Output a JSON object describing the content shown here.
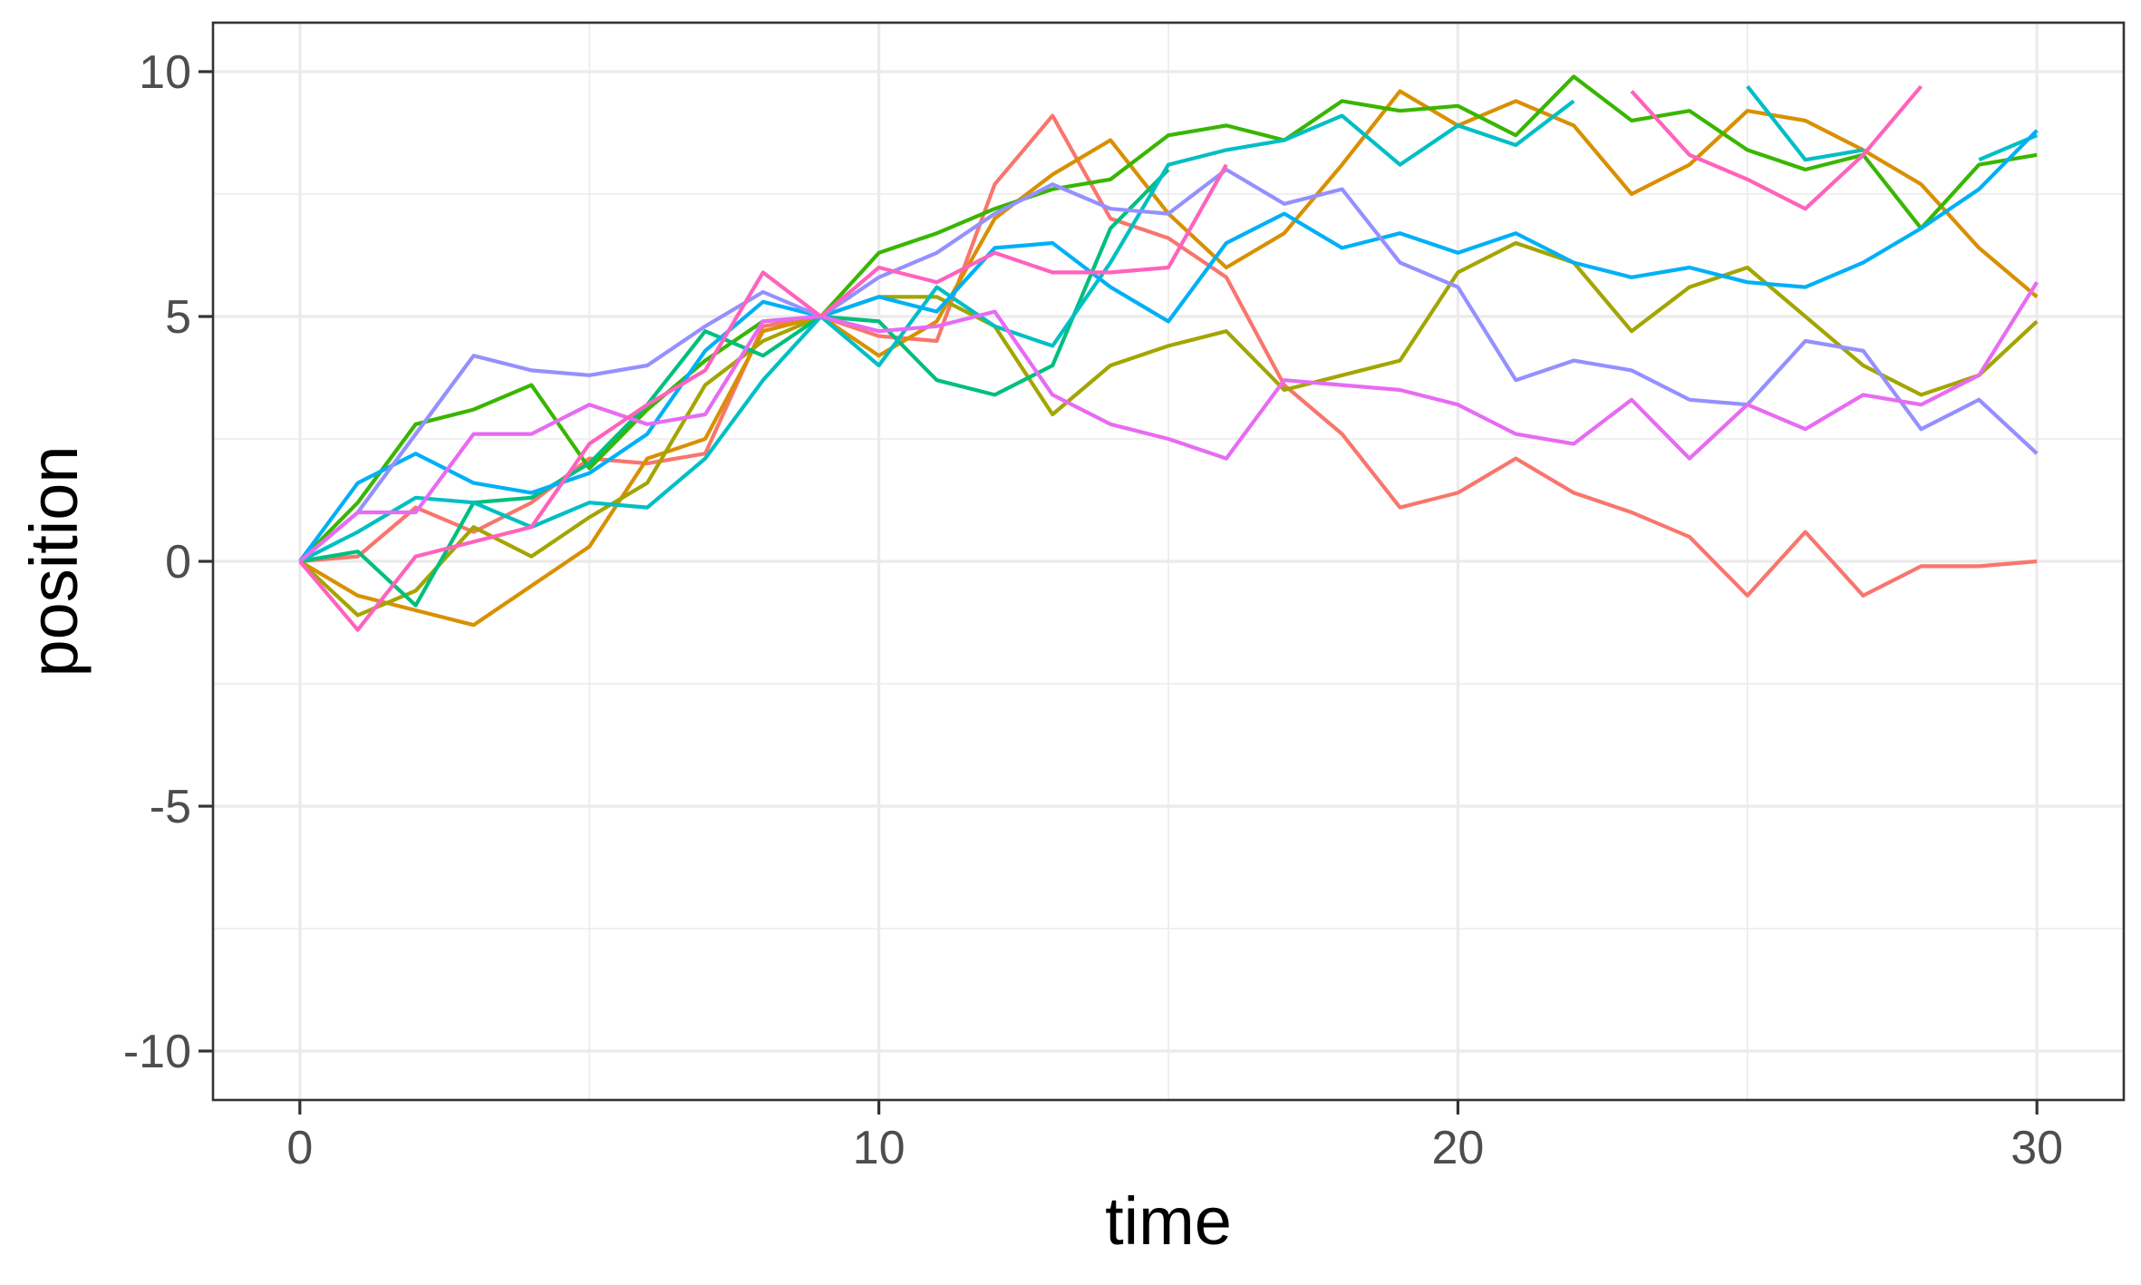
{
  "chart_data": {
    "type": "line",
    "title": "",
    "xlabel": "time",
    "ylabel": "position",
    "xlim": [
      -1.5,
      31.5
    ],
    "ylim": [
      -11,
      11
    ],
    "x_ticks": [
      0,
      10,
      20,
      30
    ],
    "y_ticks": [
      10,
      5,
      0,
      -5,
      -10
    ],
    "x_tick_labels": [
      "0",
      "10",
      "20",
      "30"
    ],
    "y_tick_labels": [
      "10",
      "5",
      "0",
      "-5",
      "-10"
    ],
    "grid": true,
    "legend": "none",
    "series": [
      {
        "color": "#F8766D",
        "values": [
          [
            0,
            0
          ],
          [
            1,
            0.1
          ],
          [
            2,
            1.1
          ],
          [
            3,
            0.6
          ],
          [
            4,
            1.2
          ],
          [
            5,
            2.1
          ],
          [
            6,
            2.0
          ],
          [
            7,
            2.2
          ],
          [
            8,
            4.8
          ],
          [
            9,
            5.0
          ],
          [
            10,
            4.6
          ],
          [
            11,
            4.5
          ],
          [
            12,
            7.7
          ],
          [
            13,
            9.1
          ],
          [
            14,
            7.0
          ],
          [
            15,
            6.6
          ],
          [
            16,
            5.8
          ],
          [
            17,
            3.6
          ],
          [
            18,
            2.6
          ],
          [
            19,
            1.1
          ],
          [
            20,
            1.4
          ],
          [
            21,
            2.1
          ],
          [
            22,
            1.4
          ],
          [
            23,
            1.0
          ],
          [
            24,
            0.5
          ],
          [
            25,
            -0.7
          ],
          [
            26,
            0.6
          ],
          [
            27,
            -0.7
          ],
          [
            28,
            -0.1
          ],
          [
            29,
            -0.1
          ],
          [
            30,
            0.0
          ]
        ]
      },
      {
        "color": "#D89000",
        "values": [
          [
            0,
            0
          ],
          [
            1,
            -0.7
          ],
          [
            2,
            -1.0
          ],
          [
            3,
            -1.3
          ],
          [
            4,
            -0.5
          ],
          [
            5,
            0.3
          ],
          [
            6,
            2.1
          ],
          [
            7,
            2.5
          ],
          [
            8,
            4.7
          ],
          [
            9,
            5.0
          ],
          [
            10,
            4.2
          ],
          [
            11,
            4.9
          ],
          [
            12,
            7.0
          ],
          [
            13,
            7.9
          ],
          [
            14,
            8.6
          ],
          [
            15,
            7.1
          ],
          [
            16,
            6.0
          ],
          [
            17,
            6.7
          ],
          [
            18,
            8.1
          ],
          [
            19,
            9.6
          ],
          [
            20,
            8.9
          ],
          [
            21,
            9.4
          ],
          [
            22,
            8.9
          ],
          [
            23,
            7.5
          ],
          [
            24,
            8.1
          ],
          [
            25,
            9.2
          ],
          [
            26,
            9.0
          ],
          [
            27,
            8.4
          ],
          [
            28,
            7.7
          ],
          [
            29,
            6.4
          ],
          [
            30,
            5.4
          ]
        ]
      },
      {
        "color": "#A3A500",
        "values": [
          [
            0,
            0
          ],
          [
            1,
            -1.1
          ],
          [
            2,
            -0.6
          ],
          [
            3,
            0.7
          ],
          [
            4,
            0.1
          ],
          [
            5,
            0.9
          ],
          [
            6,
            1.6
          ],
          [
            7,
            3.6
          ],
          [
            8,
            4.5
          ],
          [
            9,
            5.0
          ],
          [
            10,
            5.4
          ],
          [
            11,
            5.4
          ],
          [
            12,
            4.8
          ],
          [
            13,
            3.0
          ],
          [
            14,
            4.0
          ],
          [
            15,
            4.4
          ],
          [
            16,
            4.7
          ],
          [
            17,
            3.5
          ],
          [
            18,
            3.8
          ],
          [
            19,
            4.1
          ],
          [
            20,
            5.9
          ],
          [
            21,
            6.5
          ],
          [
            22,
            6.1
          ],
          [
            23,
            4.7
          ],
          [
            24,
            5.6
          ],
          [
            25,
            6.0
          ],
          [
            26,
            5.0
          ],
          [
            27,
            4.0
          ],
          [
            28,
            3.4
          ],
          [
            29,
            3.8
          ],
          [
            30,
            4.9
          ]
        ]
      },
      {
        "color": "#39B600",
        "values": [
          [
            0,
            0
          ],
          [
            1,
            1.2
          ],
          [
            2,
            2.8
          ],
          [
            3,
            3.1
          ],
          [
            4,
            3.6
          ],
          [
            5,
            1.9
          ],
          [
            6,
            3.1
          ],
          [
            7,
            4.1
          ],
          [
            8,
            4.9
          ],
          [
            9,
            5.0
          ],
          [
            10,
            6.3
          ],
          [
            11,
            6.7
          ],
          [
            12,
            7.2
          ],
          [
            13,
            7.6
          ],
          [
            14,
            7.8
          ],
          [
            15,
            8.7
          ],
          [
            16,
            8.9
          ],
          [
            17,
            8.6
          ],
          [
            18,
            9.4
          ],
          [
            19,
            9.2
          ],
          [
            20,
            9.3
          ],
          [
            21,
            8.7
          ],
          [
            22,
            9.9
          ],
          [
            23,
            9.0
          ],
          [
            24,
            9.2
          ],
          [
            25,
            8.4
          ],
          [
            26,
            8.0
          ],
          [
            27,
            8.3
          ],
          [
            28,
            6.8
          ],
          [
            29,
            8.1
          ],
          [
            30,
            8.3
          ]
        ]
      },
      {
        "color": "#00BF7D",
        "values": [
          [
            0,
            0
          ],
          [
            1,
            0.2
          ],
          [
            2,
            -0.9
          ],
          [
            3,
            1.2
          ],
          [
            4,
            1.3
          ],
          [
            5,
            2.0
          ],
          [
            6,
            3.2
          ],
          [
            7,
            4.7
          ],
          [
            8,
            4.2
          ],
          [
            9,
            5.0
          ],
          [
            10,
            4.9
          ],
          [
            11,
            3.7
          ],
          [
            12,
            3.4
          ],
          [
            13,
            4.0
          ],
          [
            14,
            6.8
          ],
          [
            15,
            8.0
          ],
          [
            16,
            null
          ]
        ]
      },
      {
        "color": "#00BFC4",
        "values": [
          [
            0,
            0
          ],
          [
            1,
            0.6
          ],
          [
            2,
            1.3
          ],
          [
            3,
            1.2
          ],
          [
            4,
            0.7
          ],
          [
            5,
            1.2
          ],
          [
            6,
            1.1
          ],
          [
            7,
            2.1
          ],
          [
            8,
            3.7
          ],
          [
            9,
            5.0
          ],
          [
            10,
            4.0
          ],
          [
            11,
            5.6
          ],
          [
            12,
            4.8
          ],
          [
            13,
            4.4
          ],
          [
            14,
            6.1
          ],
          [
            15,
            8.1
          ],
          [
            16,
            8.4
          ],
          [
            17,
            8.6
          ],
          [
            18,
            9.1
          ],
          [
            19,
            8.1
          ],
          [
            20,
            8.9
          ],
          [
            21,
            8.5
          ],
          [
            22,
            9.4
          ],
          [
            23,
            null
          ],
          [
            24,
            null
          ],
          [
            25,
            9.7
          ],
          [
            26,
            8.2
          ],
          [
            27,
            8.4
          ],
          [
            28,
            null
          ],
          [
            29,
            8.2
          ],
          [
            30,
            8.7
          ]
        ]
      },
      {
        "color": "#00B0F6",
        "values": [
          [
            0,
            0
          ],
          [
            1,
            1.6
          ],
          [
            2,
            2.2
          ],
          [
            3,
            1.6
          ],
          [
            4,
            1.4
          ],
          [
            5,
            1.8
          ],
          [
            6,
            2.6
          ],
          [
            7,
            4.3
          ],
          [
            8,
            5.3
          ],
          [
            9,
            5.0
          ],
          [
            10,
            5.4
          ],
          [
            11,
            5.1
          ],
          [
            12,
            6.4
          ],
          [
            13,
            6.5
          ],
          [
            14,
            5.6
          ],
          [
            15,
            4.9
          ],
          [
            16,
            6.5
          ],
          [
            17,
            7.1
          ],
          [
            18,
            6.4
          ],
          [
            19,
            6.7
          ],
          [
            20,
            6.3
          ],
          [
            21,
            6.7
          ],
          [
            22,
            6.1
          ],
          [
            23,
            5.8
          ],
          [
            24,
            6.0
          ],
          [
            25,
            5.7
          ],
          [
            26,
            5.6
          ],
          [
            27,
            6.1
          ],
          [
            28,
            6.8
          ],
          [
            29,
            7.6
          ],
          [
            30,
            8.8
          ]
        ]
      },
      {
        "color": "#9590FF",
        "values": [
          [
            0,
            0
          ],
          [
            1,
            1.0
          ],
          [
            2,
            2.6
          ],
          [
            3,
            4.2
          ],
          [
            4,
            3.9
          ],
          [
            5,
            3.8
          ],
          [
            6,
            4.0
          ],
          [
            7,
            4.8
          ],
          [
            8,
            5.5
          ],
          [
            9,
            5.0
          ],
          [
            10,
            5.8
          ],
          [
            11,
            6.3
          ],
          [
            12,
            7.1
          ],
          [
            13,
            7.7
          ],
          [
            14,
            7.2
          ],
          [
            15,
            7.1
          ],
          [
            16,
            8.0
          ],
          [
            17,
            7.3
          ],
          [
            18,
            7.6
          ],
          [
            19,
            6.1
          ],
          [
            20,
            5.6
          ],
          [
            21,
            3.7
          ],
          [
            22,
            4.1
          ],
          [
            23,
            3.9
          ],
          [
            24,
            3.3
          ],
          [
            25,
            3.2
          ],
          [
            26,
            4.5
          ],
          [
            27,
            4.3
          ],
          [
            28,
            2.7
          ],
          [
            29,
            3.3
          ],
          [
            30,
            2.2
          ]
        ]
      },
      {
        "color": "#E76BF3",
        "values": [
          [
            0,
            0
          ],
          [
            1,
            1.0
          ],
          [
            2,
            1.0
          ],
          [
            3,
            2.6
          ],
          [
            4,
            2.6
          ],
          [
            5,
            3.2
          ],
          [
            6,
            2.8
          ],
          [
            7,
            3.0
          ],
          [
            8,
            4.9
          ],
          [
            9,
            5.0
          ],
          [
            10,
            4.7
          ],
          [
            11,
            4.8
          ],
          [
            12,
            5.1
          ],
          [
            13,
            3.4
          ],
          [
            14,
            2.8
          ],
          [
            15,
            2.5
          ],
          [
            16,
            2.1
          ],
          [
            17,
            3.7
          ],
          [
            18,
            3.6
          ],
          [
            19,
            3.5
          ],
          [
            20,
            3.2
          ],
          [
            21,
            2.6
          ],
          [
            22,
            2.4
          ],
          [
            23,
            3.3
          ],
          [
            24,
            2.1
          ],
          [
            25,
            3.2
          ],
          [
            26,
            2.7
          ],
          [
            27,
            3.4
          ],
          [
            28,
            3.2
          ],
          [
            29,
            3.8
          ],
          [
            30,
            5.7
          ]
        ]
      },
      {
        "color": "#FF62BC",
        "values": [
          [
            0,
            0
          ],
          [
            1,
            -1.4
          ],
          [
            2,
            0.1
          ],
          [
            3,
            0.4
          ],
          [
            4,
            0.7
          ],
          [
            5,
            2.4
          ],
          [
            6,
            3.2
          ],
          [
            7,
            3.9
          ],
          [
            8,
            5.9
          ],
          [
            9,
            5.0
          ],
          [
            10,
            6.0
          ],
          [
            11,
            5.7
          ],
          [
            12,
            6.3
          ],
          [
            13,
            5.9
          ],
          [
            14,
            5.9
          ],
          [
            15,
            6.0
          ],
          [
            16,
            8.1
          ],
          [
            17,
            null
          ],
          [
            18,
            null
          ],
          [
            19,
            null
          ],
          [
            20,
            null
          ],
          [
            21,
            null
          ],
          [
            22,
            null
          ],
          [
            23,
            9.6
          ],
          [
            24,
            8.3
          ],
          [
            25,
            7.8
          ],
          [
            26,
            7.2
          ],
          [
            27,
            8.3
          ],
          [
            28,
            9.7
          ]
        ]
      }
    ]
  }
}
